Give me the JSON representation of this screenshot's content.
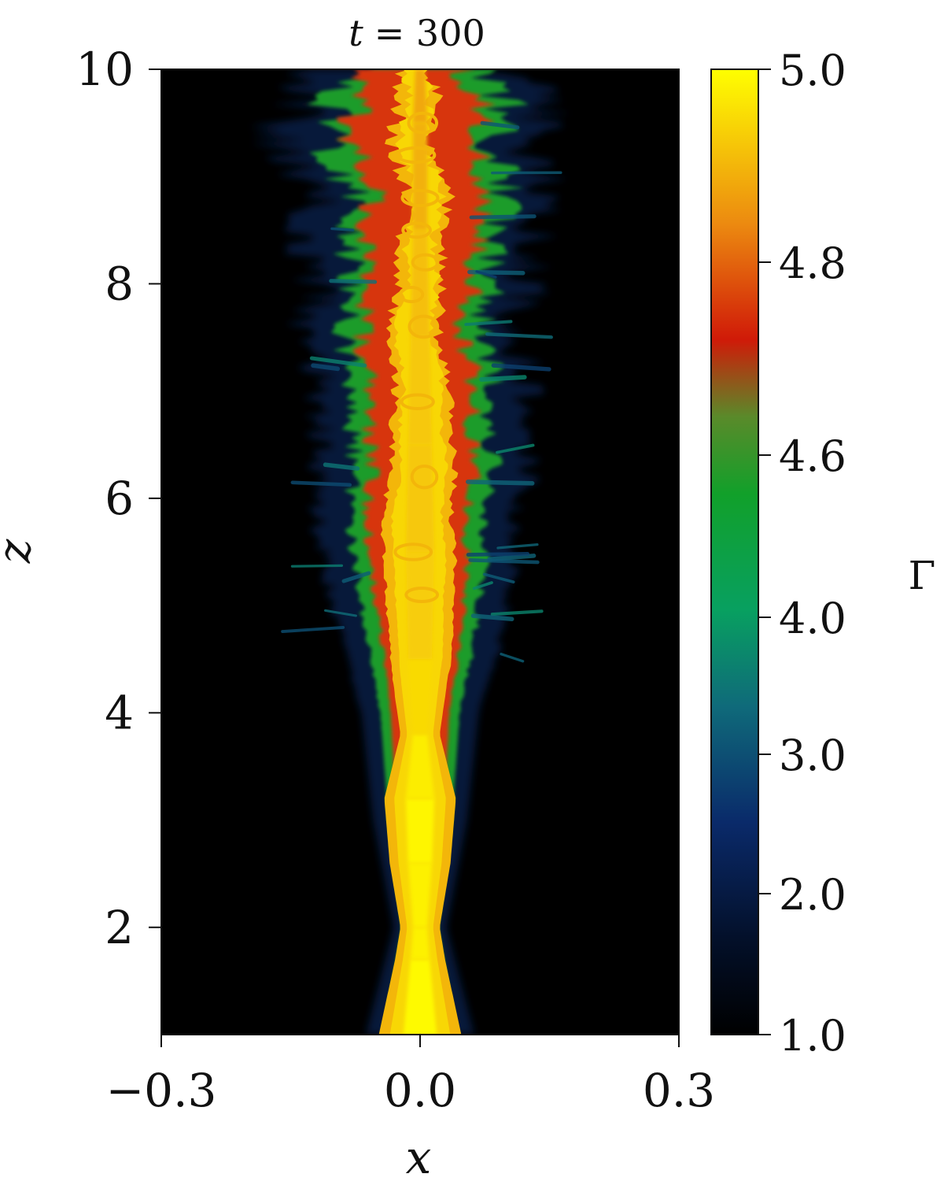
{
  "chart_data": {
    "type": "heatmap",
    "title": "t = 300",
    "title_var": "t",
    "title_value": "= 300",
    "xlabel": "x",
    "ylabel": "z",
    "xlim": [
      -0.3,
      0.3
    ],
    "ylim": [
      1.0,
      10.0
    ],
    "xticks": [
      -0.3,
      0.0,
      0.3
    ],
    "xtick_labels": [
      "−0.3",
      "0.0",
      "0.3"
    ],
    "yticks": [
      2,
      4,
      6,
      8,
      10
    ],
    "ytick_labels": [
      "2",
      "4",
      "6",
      "8",
      "10"
    ],
    "colorbar": {
      "label": "Γ",
      "range": [
        1.0,
        5.0
      ],
      "ticks": [
        1.0,
        2.0,
        3.0,
        4.0,
        4.6,
        4.8,
        5.0
      ],
      "tick_labels": [
        "1.0",
        "2.0",
        "3.0",
        "4.0",
        "4.6",
        "4.8",
        "5.0"
      ],
      "stops": [
        {
          "frac": 0.0,
          "color": "#000000"
        },
        {
          "frac": 0.1,
          "color": "#03102a"
        },
        {
          "frac": 0.22,
          "color": "#0a2a6a"
        },
        {
          "frac": 0.34,
          "color": "#0f6a7a"
        },
        {
          "frac": 0.44,
          "color": "#08a060"
        },
        {
          "frac": 0.56,
          "color": "#11a02a"
        },
        {
          "frac": 0.64,
          "color": "#5a8a2a"
        },
        {
          "frac": 0.72,
          "color": "#d01a08"
        },
        {
          "frac": 0.84,
          "color": "#ec8a10"
        },
        {
          "frac": 1.0,
          "color": "#ffff00"
        }
      ]
    },
    "jet": {
      "description": "Lorentz factor map of a relativistic jet along the z axis",
      "axis_x": 0.0,
      "core_profile": [
        {
          "z": 1.0,
          "half_width": 0.035,
          "gamma": 5.0
        },
        {
          "z": 1.7,
          "half_width": 0.02,
          "gamma": 4.95
        },
        {
          "z": 2.0,
          "half_width": 0.015,
          "gamma": 4.9
        },
        {
          "z": 2.6,
          "half_width": 0.025,
          "gamma": 4.95
        },
        {
          "z": 3.2,
          "half_width": 0.03,
          "gamma": 4.95
        },
        {
          "z": 3.8,
          "half_width": 0.015,
          "gamma": 4.85
        },
        {
          "z": 4.5,
          "half_width": 0.025,
          "gamma": 4.75
        },
        {
          "z": 5.5,
          "half_width": 0.03,
          "gamma": 4.7
        },
        {
          "z": 6.5,
          "half_width": 0.025,
          "gamma": 4.7
        },
        {
          "z": 7.5,
          "half_width": 0.02,
          "gamma": 4.7
        },
        {
          "z": 8.5,
          "half_width": 0.015,
          "gamma": 4.6
        },
        {
          "z": 9.5,
          "half_width": 0.015,
          "gamma": 4.55
        },
        {
          "z": 10.0,
          "half_width": 0.01,
          "gamma": 4.5
        }
      ],
      "sheath_profile": [
        {
          "z": 1.0,
          "half_width": 0.037
        },
        {
          "z": 2.0,
          "half_width": 0.018
        },
        {
          "z": 3.0,
          "half_width": 0.032
        },
        {
          "z": 4.0,
          "half_width": 0.04
        },
        {
          "z": 5.0,
          "half_width": 0.06
        },
        {
          "z": 6.0,
          "half_width": 0.07
        },
        {
          "z": 7.0,
          "half_width": 0.07
        },
        {
          "z": 8.0,
          "half_width": 0.07
        },
        {
          "z": 9.0,
          "half_width": 0.08
        },
        {
          "z": 9.7,
          "half_width": 0.09
        },
        {
          "z": 10.0,
          "half_width": 0.06
        }
      ]
    }
  }
}
